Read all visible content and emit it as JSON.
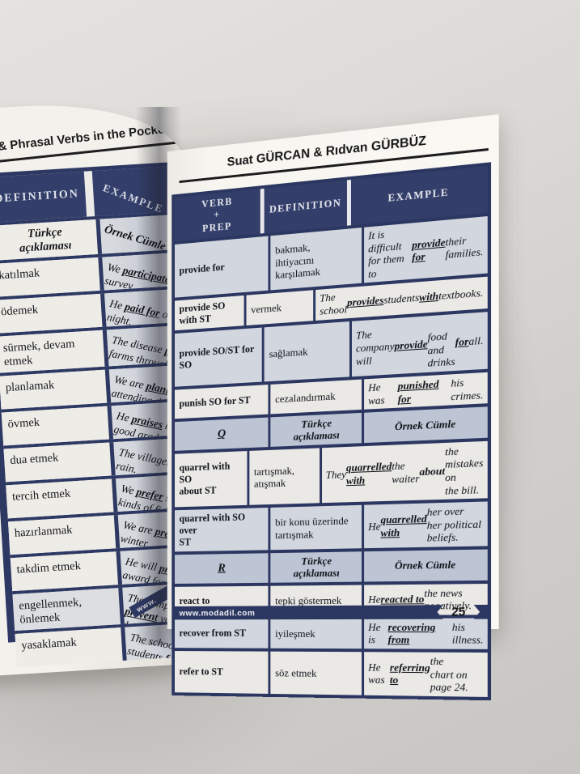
{
  "colors": {
    "navy": "#2c3761",
    "header_bg": "#333f6a",
    "section_row_bg": "#bdc5d4",
    "row_dark_bg": "#d2d7df",
    "row_light_bg": "#eae9e6",
    "page_bg": "#f8f6f1",
    "footer_text": "#f2f2f5"
  },
  "left_page": {
    "header_title": "ns & Phrasal Verbs in the Pocket",
    "footer_text": "www.",
    "table": {
      "columns": [
        "DEFINITION",
        "EXAMPLE"
      ],
      "rows": [
        {
          "type": "section",
          "shade": "sec",
          "definition": "Türkçe\naçıklaması",
          "example": "Örnek Cümle"
        },
        {
          "type": "data",
          "shade": "light",
          "definition": "katılmak",
          "example": [
            [
              "We ",
              ""
            ],
            [
              "participated in",
              "bu"
            ],
            [
              "\nsurvey.",
              ""
            ]
          ]
        },
        {
          "type": "data",
          "shade": "light",
          "definition": "ödemek",
          "example": [
            [
              "He ",
              ""
            ],
            [
              "paid for",
              "bu"
            ],
            [
              " our\nnight.",
              ""
            ]
          ]
        },
        {
          "type": "data",
          "shade": "light",
          "definition": "sürmek, devam\netmek",
          "example": [
            [
              "The disease ",
              ""
            ],
            [
              "persis",
              "bu"
            ],
            [
              "\nfarms througho",
              ""
            ]
          ]
        },
        {
          "type": "data",
          "shade": "light",
          "definition": "planlamak",
          "example": [
            [
              "We are ",
              ""
            ],
            [
              "planning",
              "bu"
            ],
            [
              "\nattending the wed",
              ""
            ]
          ]
        },
        {
          "type": "data",
          "shade": "light",
          "definition": "övmek",
          "example": [
            [
              "He ",
              ""
            ],
            [
              "praises",
              "bu"
            ],
            [
              " his son\ngood grades.",
              ""
            ]
          ]
        },
        {
          "type": "data",
          "shade": "light",
          "definition": "dua etmek",
          "example": [
            [
              "The villagers ",
              ""
            ],
            [
              "pray",
              "bu"
            ],
            [
              "\nrain.",
              ""
            ]
          ]
        },
        {
          "type": "data",
          "shade": "light",
          "definition": "tercih etmek",
          "example": [
            [
              "We ",
              ""
            ],
            [
              "prefer",
              "bu"
            ],
            [
              " salmon\nkinds of fish.",
              ""
            ]
          ]
        },
        {
          "type": "data",
          "shade": "light",
          "definition": "hazırlanmak",
          "example": [
            [
              "We are ",
              ""
            ],
            [
              "preparing",
              "bu"
            ],
            [
              "\nwinter.",
              ""
            ]
          ]
        },
        {
          "type": "data",
          "shade": "light",
          "definition": "takdim etmek",
          "example": [
            [
              "He will ",
              ""
            ],
            [
              "present",
              "bu"
            ],
            [
              "\naward for best j",
              ""
            ]
          ]
        },
        {
          "type": "data",
          "shade": "dark",
          "definition": "engellenmek,\nönlemek",
          "example": [
            [
              "The campaign is\n",
              ""
            ],
            [
              "prevent",
              "bu"
            ],
            [
              " young peo\ndrinking.",
              ""
            ]
          ]
        },
        {
          "type": "data",
          "shade": "light",
          "definition": "yasaklamak",
          "example": [
            [
              "The school ",
              ""
            ],
            [
              "prohibi",
              "bu"
            ],
            [
              "\nstudents ",
              ""
            ],
            [
              "from",
              "bu"
            ],
            [
              " smo",
              ""
            ]
          ]
        }
      ]
    }
  },
  "right_page": {
    "header_title": "Suat GÜRCAN & Rıdvan GÜRBÜZ",
    "footer_url": "www.modadil.com",
    "page_number": "25",
    "table": {
      "columns": [
        "VERB\n+\nPREP",
        "DEFINITION",
        "EXAMPLE"
      ],
      "rows": [
        {
          "type": "data",
          "shade": "dark",
          "verb": "provide for",
          "definition": "bakmak,\nihtiyacını\nkarşılamak",
          "example": [
            [
              "It is difficult for them to\n",
              ""
            ],
            [
              "provide for",
              "bu"
            ],
            [
              " their families.",
              ""
            ]
          ]
        },
        {
          "type": "data",
          "shade": "light",
          "verb": "provide SO with ST",
          "definition": "vermek",
          "example": [
            [
              "The school ",
              ""
            ],
            [
              "provides",
              "bu"
            ],
            [
              " students\n",
              ""
            ],
            [
              "with",
              "bu"
            ],
            [
              " textbooks.",
              ""
            ]
          ]
        },
        {
          "type": "data",
          "shade": "dark",
          "verb": "provide SO/ST for\nSO",
          "definition": "sağlamak",
          "example": [
            [
              "The company will ",
              ""
            ],
            [
              "provide",
              "bu"
            ],
            [
              "\nfood and drinks ",
              ""
            ],
            [
              "for",
              "bu"
            ],
            [
              " all.",
              ""
            ]
          ]
        },
        {
          "type": "data",
          "shade": "light",
          "verb": "punish SO for ST",
          "definition": "cezalandırmak",
          "example": [
            [
              "He was ",
              ""
            ],
            [
              "punished for",
              "bu"
            ],
            [
              " his\ncrimes.",
              ""
            ]
          ]
        },
        {
          "type": "section",
          "shade": "sec",
          "verb": "Q",
          "definition": "Türkçe\naçıklaması",
          "example": "Örnek Cümle"
        },
        {
          "type": "data",
          "shade": "light",
          "verb": "quarrel with SO\nabout ST",
          "definition": "tartışmak,\natışmak",
          "example": [
            [
              "They ",
              ""
            ],
            [
              "quarrelled with",
              "bu"
            ],
            [
              " the\nwaiter ",
              ""
            ],
            [
              "about",
              "b"
            ],
            [
              " the mistakes on\nthe bill.",
              ""
            ]
          ]
        },
        {
          "type": "data",
          "shade": "dark",
          "verb": "quarrel with SO over\nST",
          "definition": "bir konu üzerinde\ntartışmak",
          "example": [
            [
              "He ",
              ""
            ],
            [
              "quarrelled with",
              "bu"
            ],
            [
              " her over\nher political beliefs.",
              ""
            ]
          ]
        },
        {
          "type": "section",
          "shade": "sec",
          "verb": "R",
          "definition": "Türkçe\naçıklaması",
          "example": "Örnek Cümle"
        },
        {
          "type": "data",
          "shade": "light",
          "verb": "react to",
          "definition": "tepki göstermek",
          "example": [
            [
              "He ",
              ""
            ],
            [
              "reacted to",
              "bu"
            ],
            [
              " the news\nnegatively.",
              ""
            ]
          ]
        },
        {
          "type": "data",
          "shade": "dark",
          "verb": "recover from ST",
          "definition": "iyileşmek",
          "example": [
            [
              "He is ",
              ""
            ],
            [
              "recovering from",
              "bu"
            ],
            [
              " his\nillness.",
              ""
            ]
          ]
        },
        {
          "type": "data",
          "shade": "light",
          "verb": "refer to ST",
          "definition": "söz etmek",
          "example": [
            [
              "He was ",
              ""
            ],
            [
              "referring to",
              "bu"
            ],
            [
              " the\nchart on page 24.",
              ""
            ]
          ]
        }
      ]
    }
  }
}
